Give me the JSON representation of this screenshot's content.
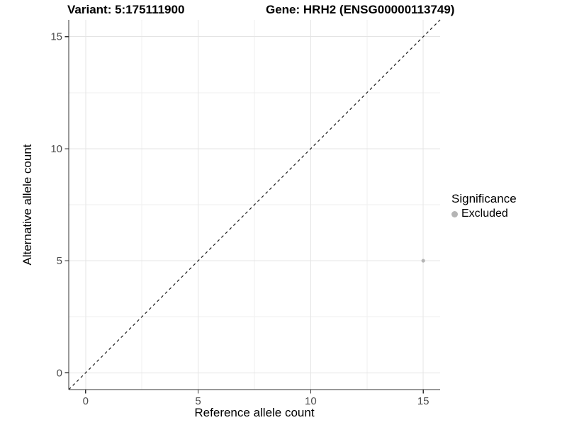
{
  "chart_data": {
    "type": "scatter",
    "titles": {
      "variant": "Variant: 5:175111900",
      "gene": "Gene: HRH2 (ENSG00000113749)"
    },
    "xlabel": "Reference allele count",
    "ylabel": "Alternative allele count",
    "xlim": [
      -0.75,
      15.75
    ],
    "ylim": [
      -0.75,
      15.75
    ],
    "x_ticks": [
      0,
      5,
      10,
      15
    ],
    "y_ticks": [
      0,
      5,
      10,
      15
    ],
    "x_minor_ticks": [
      2.5,
      7.5,
      12.5
    ],
    "y_minor_ticks": [
      2.5,
      7.5,
      12.5
    ],
    "grid": true,
    "points": [
      {
        "x": 15,
        "y": 5,
        "significance": "Excluded",
        "color": "#b5b5b5"
      }
    ],
    "reference_line": {
      "slope": 1,
      "intercept": 0,
      "style": "dashed",
      "color": "#1a1a1a"
    },
    "legend": {
      "title": "Significance",
      "position": "right",
      "items": [
        {
          "label": "Excluded",
          "color": "#b5b5b5"
        }
      ]
    },
    "colors": {
      "background": "#ffffff",
      "grid_major": "#e4e4e4",
      "grid_minor": "#efefef",
      "axis": "#333333",
      "tick_label": "#4d4d4d"
    }
  }
}
